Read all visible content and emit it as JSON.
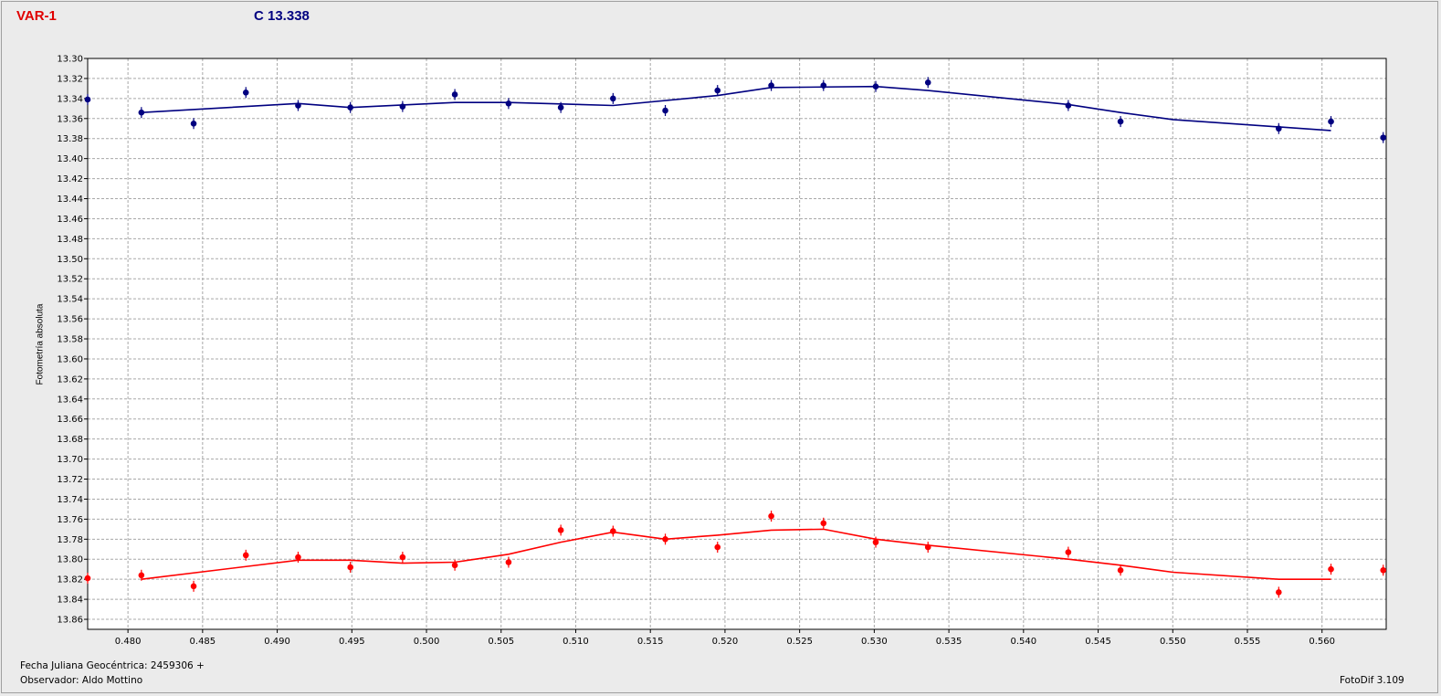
{
  "header": {
    "var_label": "VAR-1",
    "comp_label": "C 13.338"
  },
  "footer": {
    "date_label": "Fecha Juliana Geocéntrica: 2459306 +",
    "observer_label": "Observador: Aldo Mottino",
    "software_label": "FotoDif 3.109"
  },
  "chart_data": {
    "type": "scatter",
    "title": "",
    "xlabel": "",
    "ylabel": "Fotometría absoluta",
    "xlim": [
      0.4773,
      0.5643
    ],
    "ylim": [
      13.3,
      13.87
    ],
    "y_inverted": true,
    "grid": true,
    "x_ticks": [
      "0.480",
      "0.485",
      "0.490",
      "0.495",
      "0.500",
      "0.505",
      "0.510",
      "0.515",
      "0.520",
      "0.525",
      "0.530",
      "0.535",
      "0.540",
      "0.545",
      "0.550",
      "0.555",
      "0.560"
    ],
    "y_ticks": [
      "13.30",
      "13.32",
      "13.34",
      "13.36",
      "13.38",
      "13.40",
      "13.42",
      "13.44",
      "13.46",
      "13.48",
      "13.50",
      "13.52",
      "13.54",
      "13.56",
      "13.58",
      "13.60",
      "13.62",
      "13.64",
      "13.66",
      "13.68",
      "13.70",
      "13.72",
      "13.74",
      "13.76",
      "13.78",
      "13.80",
      "13.82",
      "13.84",
      "13.86"
    ],
    "series": [
      {
        "name": "C 13.338",
        "color": "#000080",
        "points": [
          [
            0.4773,
            13.341
          ],
          [
            0.4809,
            13.354
          ],
          [
            0.4844,
            13.365
          ],
          [
            0.4879,
            13.334
          ],
          [
            0.4914,
            13.347
          ],
          [
            0.4949,
            13.349
          ],
          [
            0.4984,
            13.348
          ],
          [
            0.5019,
            13.336
          ],
          [
            0.5055,
            13.345
          ],
          [
            0.509,
            13.349
          ],
          [
            0.5125,
            13.34
          ],
          [
            0.516,
            13.352
          ],
          [
            0.5195,
            13.332
          ],
          [
            0.5231,
            13.327
          ],
          [
            0.5266,
            13.327
          ],
          [
            0.5301,
            13.328
          ],
          [
            0.5336,
            13.324
          ],
          [
            0.543,
            13.347
          ],
          [
            0.5465,
            13.363
          ],
          [
            0.5571,
            13.37
          ],
          [
            0.5606,
            13.363
          ],
          [
            0.5641,
            13.379
          ]
        ],
        "trend": [
          [
            0.4809,
            13.354
          ],
          [
            0.4914,
            13.345
          ],
          [
            0.4949,
            13.349
          ],
          [
            0.5019,
            13.344
          ],
          [
            0.5055,
            13.344
          ],
          [
            0.5125,
            13.347
          ],
          [
            0.5195,
            13.337
          ],
          [
            0.5231,
            13.329
          ],
          [
            0.5301,
            13.328
          ],
          [
            0.5336,
            13.332
          ],
          [
            0.543,
            13.346
          ],
          [
            0.5465,
            13.354
          ],
          [
            0.55,
            13.361
          ],
          [
            0.5606,
            13.372
          ]
        ]
      },
      {
        "name": "VAR-1",
        "color": "#ff0000",
        "points": [
          [
            0.4773,
            13.819
          ],
          [
            0.4809,
            13.816
          ],
          [
            0.4844,
            13.827
          ],
          [
            0.4879,
            13.796
          ],
          [
            0.4914,
            13.798
          ],
          [
            0.4949,
            13.808
          ],
          [
            0.4984,
            13.798
          ],
          [
            0.5019,
            13.806
          ],
          [
            0.5055,
            13.803
          ],
          [
            0.509,
            13.771
          ],
          [
            0.5125,
            13.772
          ],
          [
            0.516,
            13.78
          ],
          [
            0.5195,
            13.788
          ],
          [
            0.5231,
            13.757
          ],
          [
            0.5266,
            13.764
          ],
          [
            0.5301,
            13.783
          ],
          [
            0.5336,
            13.788
          ],
          [
            0.543,
            13.793
          ],
          [
            0.5465,
            13.811
          ],
          [
            0.5571,
            13.833
          ],
          [
            0.5606,
            13.81
          ],
          [
            0.5641,
            13.811
          ]
        ],
        "trend": [
          [
            0.4809,
            13.82
          ],
          [
            0.4914,
            13.801
          ],
          [
            0.4949,
            13.801
          ],
          [
            0.4984,
            13.804
          ],
          [
            0.5019,
            13.803
          ],
          [
            0.5055,
            13.795
          ],
          [
            0.509,
            13.783
          ],
          [
            0.5125,
            13.773
          ],
          [
            0.516,
            13.78
          ],
          [
            0.5195,
            13.776
          ],
          [
            0.5231,
            13.771
          ],
          [
            0.5266,
            13.77
          ],
          [
            0.5301,
            13.78
          ],
          [
            0.5336,
            13.786
          ],
          [
            0.543,
            13.8
          ],
          [
            0.5465,
            13.806
          ],
          [
            0.55,
            13.813
          ],
          [
            0.5571,
            13.82
          ],
          [
            0.5606,
            13.82
          ]
        ]
      }
    ]
  }
}
